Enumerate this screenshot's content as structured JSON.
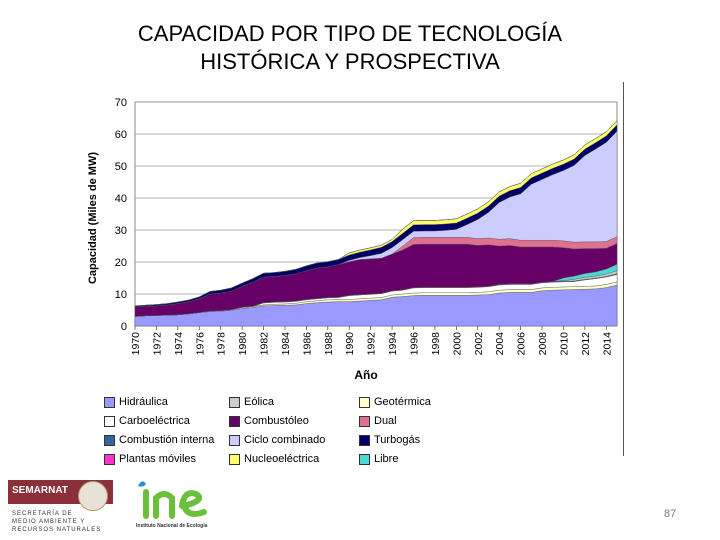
{
  "slide": {
    "title": "CAPACIDAD POR TIPO DE TECNOLOGÍA\nHISTÓRICA Y PROSPECTIVA",
    "page_number": "87",
    "logo_semarnat": {
      "name": "SEMARNAT",
      "subtitle": "SECRETARÍA DE\nMEDIO AMBIENTE Y\nRECURSOS NATURALES"
    },
    "logo_ine": {
      "text": "ine",
      "caption": "Instituto Nacional de Ecología"
    }
  },
  "chart_data": {
    "type": "area",
    "stacked": true,
    "xlabel": "Año",
    "ylabel": "Capacidad (Miles de MW)",
    "ylim": [
      0,
      70
    ],
    "yticks": [
      0,
      10,
      20,
      30,
      40,
      50,
      60,
      70
    ],
    "grid": true,
    "legend_position": "bottom",
    "x_tick_labels": [
      "1970",
      "1972",
      "1974",
      "1976",
      "1978",
      "1980",
      "1982",
      "1984",
      "1986",
      "1988",
      "1990",
      "1992",
      "1994",
      "1996",
      "1998",
      "2000",
      "2002",
      "2004",
      "2006",
      "2008",
      "2010",
      "2012",
      "2014"
    ],
    "x": [
      1970,
      1971,
      1972,
      1973,
      1974,
      1975,
      1976,
      1977,
      1978,
      1979,
      1980,
      1981,
      1982,
      1983,
      1984,
      1985,
      1986,
      1987,
      1988,
      1989,
      1990,
      1991,
      1992,
      1993,
      1994,
      1995,
      1996,
      1997,
      1998,
      1999,
      2000,
      2001,
      2002,
      2003,
      2004,
      2005,
      2006,
      2007,
      2008,
      2009,
      2010,
      2011,
      2012,
      2013,
      2014,
      2015
    ],
    "series": [
      {
        "name": "Hidráulica",
        "color": "#9999ff",
        "values": [
          3.0,
          3.2,
          3.3,
          3.4,
          3.5,
          3.8,
          4.2,
          4.5,
          4.6,
          4.9,
          5.5,
          5.8,
          6.3,
          6.4,
          6.5,
          6.6,
          7.0,
          7.3,
          7.5,
          7.6,
          7.6,
          7.8,
          8.0,
          8.2,
          9.0,
          9.2,
          9.5,
          9.6,
          9.6,
          9.6,
          9.6,
          9.6,
          9.7,
          9.8,
          10.3,
          10.5,
          10.5,
          10.5,
          11.0,
          11.2,
          11.3,
          11.4,
          11.5,
          11.6,
          12.0,
          12.8
        ]
      },
      {
        "name": "Geotérmica",
        "color": "#ffffcc",
        "values": [
          0,
          0,
          0,
          0,
          0,
          0,
          0,
          0.2,
          0.2,
          0.2,
          0.3,
          0.3,
          0.3,
          0.4,
          0.4,
          0.5,
          0.6,
          0.6,
          0.7,
          0.7,
          0.7,
          0.7,
          0.7,
          0.7,
          0.7,
          0.8,
          0.8,
          0.8,
          0.8,
          0.8,
          0.8,
          0.8,
          0.8,
          0.9,
          0.9,
          0.9,
          0.9,
          0.9,
          0.9,
          0.9,
          0.9,
          0.9,
          0.9,
          0.9,
          1.0,
          1.0
        ]
      },
      {
        "name": "Carboeléctrica",
        "color": "#ffffff",
        "values": [
          0,
          0,
          0,
          0,
          0,
          0,
          0,
          0,
          0,
          0,
          0,
          0,
          0.6,
          0.6,
          0.6,
          0.6,
          0.6,
          0.6,
          0.6,
          0.6,
          1.2,
          1.2,
          1.2,
          1.2,
          1.2,
          1.2,
          1.6,
          1.6,
          1.6,
          1.6,
          1.6,
          1.6,
          1.6,
          1.6,
          1.6,
          1.6,
          1.6,
          1.6,
          1.6,
          1.6,
          1.6,
          1.6,
          2.0,
          2.3,
          2.3,
          2.3
        ]
      },
      {
        "name": "Combustión interna",
        "color": "#336699",
        "values": [
          0,
          0,
          0,
          0,
          0,
          0,
          0,
          0,
          0,
          0,
          0.1,
          0.1,
          0.1,
          0.1,
          0.1,
          0.1,
          0.1,
          0.1,
          0.1,
          0.1,
          0.1,
          0.1,
          0.1,
          0.1,
          0.1,
          0.1,
          0.1,
          0.1,
          0.1,
          0.1,
          0.1,
          0.1,
          0.1,
          0.1,
          0.2,
          0.2,
          0.2,
          0.2,
          0.2,
          0.2,
          0.2,
          0.2,
          0.2,
          0.2,
          0.2,
          0.3
        ]
      },
      {
        "name": "Eólica",
        "color": "#cccccc",
        "values": [
          0,
          0,
          0,
          0,
          0,
          0,
          0,
          0,
          0,
          0,
          0,
          0,
          0,
          0,
          0,
          0,
          0,
          0,
          0,
          0,
          0,
          0,
          0,
          0,
          0,
          0,
          0,
          0,
          0,
          0,
          0,
          0,
          0,
          0,
          0,
          0,
          0,
          0,
          0,
          0,
          0.2,
          0.5,
          0.6,
          0.6,
          0.7,
          0.9
        ]
      },
      {
        "name": "Libre",
        "color": "#4dd8d8",
        "values": [
          0,
          0,
          0,
          0,
          0,
          0,
          0,
          0,
          0,
          0,
          0,
          0,
          0,
          0,
          0,
          0,
          0,
          0,
          0,
          0,
          0,
          0,
          0,
          0,
          0,
          0,
          0,
          0,
          0,
          0,
          0,
          0,
          0,
          0,
          0,
          0,
          0,
          0,
          0,
          0,
          0.8,
          1.0,
          1.2,
          1.3,
          1.6,
          2.0
        ]
      },
      {
        "name": "Combustóleo",
        "color": "#660066",
        "values": [
          3.0,
          3.0,
          3.0,
          3.2,
          3.5,
          3.8,
          4.3,
          5.3,
          5.5,
          5.8,
          6.5,
          7.5,
          8.0,
          8.0,
          8.2,
          8.5,
          9.0,
          9.5,
          9.6,
          10.2,
          10.5,
          11.0,
          11.0,
          11.0,
          11.5,
          12.5,
          13.5,
          13.5,
          13.5,
          13.5,
          13.5,
          13.5,
          13.0,
          13.0,
          12.0,
          12.0,
          11.5,
          11.5,
          11.0,
          10.8,
          9.5,
          8.5,
          7.8,
          7.3,
          6.5,
          6.5
        ]
      },
      {
        "name": "Dual",
        "color": "#e07090",
        "values": [
          0,
          0,
          0,
          0,
          0,
          0,
          0,
          0,
          0,
          0,
          0,
          0,
          0,
          0,
          0,
          0,
          0,
          0,
          0,
          0,
          0,
          0,
          0,
          0,
          0,
          1.2,
          2.1,
          2.1,
          2.1,
          2.1,
          2.1,
          2.1,
          2.1,
          2.1,
          2.1,
          2.1,
          2.1,
          2.1,
          2.1,
          2.1,
          2.1,
          2.1,
          2.1,
          2.1,
          2.1,
          2.1
        ]
      },
      {
        "name": "Ciclo combinado",
        "color": "#ccccff",
        "values": [
          0,
          0,
          0,
          0,
          0,
          0,
          0,
          0,
          0,
          0,
          0,
          0,
          0,
          0,
          0,
          0,
          0,
          0,
          0,
          0,
          0.4,
          0.6,
          1.0,
          1.5,
          2.0,
          2.0,
          2.0,
          2.0,
          2.0,
          2.2,
          2.5,
          4.0,
          6.0,
          8.0,
          11.5,
          13.0,
          14.5,
          17.5,
          19.0,
          20.5,
          22.0,
          24.0,
          27.0,
          29.0,
          31.0,
          33.0
        ]
      },
      {
        "name": "Turbogás",
        "color": "#000066",
        "values": [
          0.3,
          0.3,
          0.4,
          0.4,
          0.5,
          0.5,
          0.6,
          0.8,
          0.9,
          1.0,
          1.0,
          1.1,
          1.2,
          1.2,
          1.3,
          1.4,
          1.5,
          1.6,
          1.6,
          1.6,
          1.7,
          1.7,
          1.8,
          1.9,
          1.9,
          2.0,
          2.0,
          2.0,
          2.0,
          2.0,
          2.0,
          2.0,
          2.0,
          2.0,
          2.0,
          2.0,
          2.0,
          2.0,
          2.0,
          2.0,
          2.0,
          2.0,
          2.0,
          2.0,
          2.0,
          2.0
        ]
      },
      {
        "name": "Nucleoeléctrica",
        "color": "#ffff66",
        "values": [
          0,
          0,
          0,
          0,
          0,
          0,
          0,
          0,
          0,
          0,
          0,
          0,
          0,
          0,
          0,
          0,
          0,
          0,
          0,
          0,
          0.65,
          0.65,
          0.65,
          0.65,
          0.65,
          1.3,
          1.3,
          1.3,
          1.3,
          1.3,
          1.3,
          1.3,
          1.3,
          1.3,
          1.3,
          1.3,
          1.3,
          1.3,
          1.3,
          1.3,
          1.3,
          1.3,
          1.3,
          1.3,
          1.3,
          1.3
        ]
      },
      {
        "name": "Plantas móviles",
        "color": "#ff33cc",
        "values": [
          0,
          0,
          0,
          0,
          0,
          0,
          0,
          0,
          0,
          0,
          0,
          0,
          0,
          0,
          0,
          0,
          0,
          0,
          0,
          0,
          0,
          0,
          0,
          0,
          0,
          0,
          0,
          0,
          0,
          0,
          0,
          0,
          0,
          0,
          0,
          0,
          0,
          0,
          0,
          0,
          0,
          0,
          0,
          0,
          0,
          0
        ]
      }
    ],
    "legend": [
      "Hidráulica",
      "Eólica",
      "Geotérmica",
      "Carboeléctrica",
      "Combustóleo",
      "Dual",
      "Combustión interna",
      "Ciclo combinado",
      "Turbogás",
      "Plantas móviles",
      "Nucleoeléctrica",
      "Libre"
    ]
  }
}
